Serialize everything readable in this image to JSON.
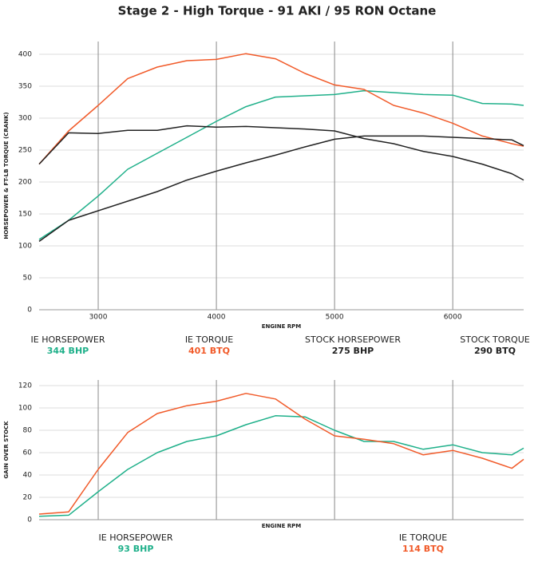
{
  "title": "Stage 2 - High Torque - 91 AKI / 95 RON Octane",
  "chart_data": [
    {
      "type": "line",
      "xlabel": "ENGINE RPM",
      "ylabel": "HORSEPOWER & FT-LB TORQUE (CRANK)",
      "x": [
        2500,
        2750,
        3000,
        3250,
        3500,
        3750,
        4000,
        4250,
        4500,
        4750,
        5000,
        5250,
        5500,
        5750,
        6000,
        6250,
        6500,
        6600
      ],
      "xlim": [
        2500,
        6600
      ],
      "xticks": [
        3000,
        4000,
        5000,
        6000
      ],
      "ylim": [
        0,
        420
      ],
      "yticks": [
        0,
        50,
        100,
        150,
        200,
        250,
        300,
        350,
        400
      ],
      "grid": true,
      "series": [
        {
          "name": "IE HORSEPOWER",
          "peak_label": "344 BHP",
          "color": "#1fb08a",
          "values": [
            110,
            140,
            178,
            220,
            245,
            270,
            295,
            318,
            333,
            335,
            337,
            343,
            340,
            337,
            336,
            323,
            322,
            320
          ]
        },
        {
          "name": "IE TORQUE",
          "peak_label": "401 BTQ",
          "color": "#f15a29",
          "values": [
            228,
            280,
            320,
            362,
            380,
            390,
            392,
            401,
            393,
            370,
            352,
            345,
            320,
            308,
            292,
            272,
            260,
            256
          ]
        },
        {
          "name": "STOCK HORSEPOWER",
          "peak_label": "275 BHP",
          "color": "#222222",
          "values": [
            107,
            140,
            155,
            170,
            185,
            203,
            217,
            230,
            242,
            255,
            267,
            272,
            272,
            272,
            270,
            268,
            266,
            257
          ]
        },
        {
          "name": "STOCK TORQUE",
          "peak_label": "290 BTQ",
          "color": "#222222",
          "values": [
            228,
            277,
            276,
            281,
            281,
            288,
            286,
            287,
            285,
            283,
            280,
            268,
            260,
            248,
            240,
            228,
            213,
            203
          ]
        }
      ]
    },
    {
      "type": "line",
      "xlabel": "ENGINE RPM",
      "ylabel": "GAIN OVER STOCK",
      "x": [
        2500,
        2750,
        3000,
        3250,
        3500,
        3750,
        4000,
        4250,
        4500,
        4750,
        5000,
        5250,
        5500,
        5750,
        6000,
        6250,
        6500,
        6600
      ],
      "xlim": [
        2500,
        6600
      ],
      "ylim": [
        0,
        125
      ],
      "yticks": [
        0,
        20,
        40,
        60,
        80,
        100,
        120
      ],
      "grid": true,
      "series": [
        {
          "name": "IE HORSEPOWER",
          "peak_label": "93 BHP",
          "color": "#1fb08a",
          "values": [
            3,
            4,
            25,
            45,
            60,
            70,
            75,
            85,
            93,
            92,
            80,
            70,
            70,
            63,
            67,
            60,
            58,
            64
          ]
        },
        {
          "name": "IE TORQUE",
          "peak_label": "114 BTQ",
          "color": "#f15a29",
          "values": [
            5,
            7,
            45,
            78,
            95,
            102,
            106,
            113,
            108,
            90,
            75,
            72,
            68,
            58,
            62,
            55,
            46,
            54
          ]
        }
      ]
    }
  ]
}
